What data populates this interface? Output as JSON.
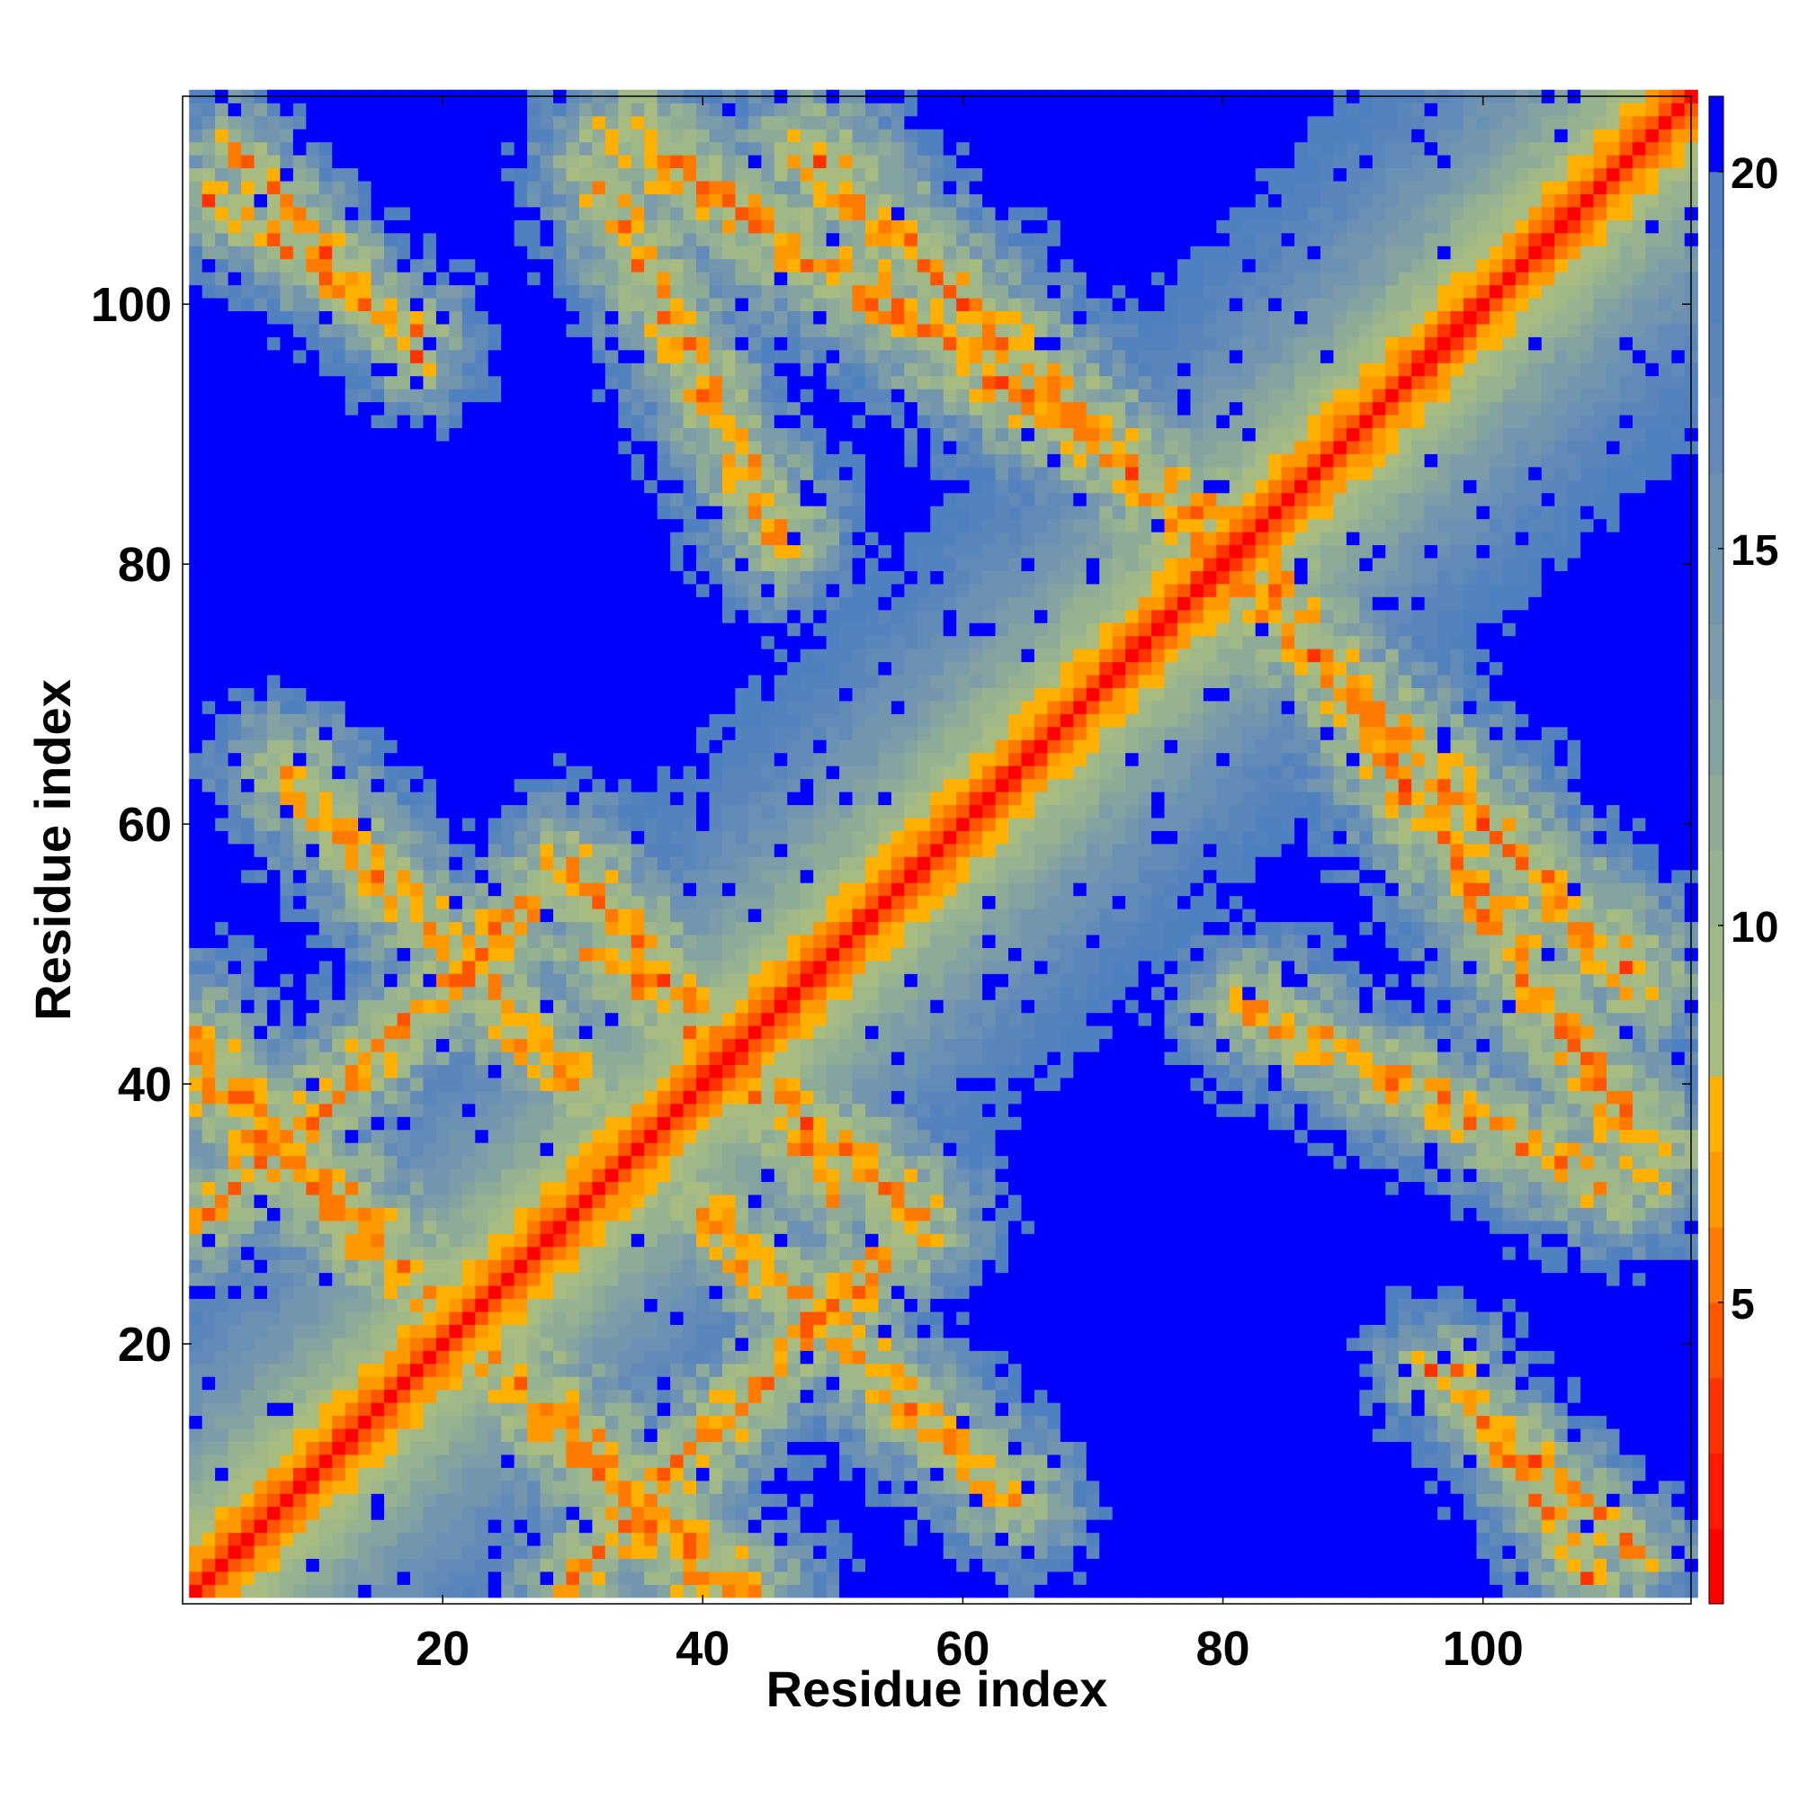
{
  "chart_data": {
    "type": "heatmap",
    "title": "",
    "xlabel": "Residue index",
    "ylabel": "Residue index",
    "n": 116,
    "x_range": [
      1,
      116
    ],
    "y_range": [
      1,
      116
    ],
    "xticks": [
      20,
      40,
      60,
      80,
      100
    ],
    "yticks": [
      20,
      40,
      60,
      80,
      100
    ],
    "colorbar": {
      "ticks": [
        5,
        10,
        15,
        20
      ],
      "range": [
        1,
        21
      ],
      "bands": [
        {
          "max": 2,
          "color": "#ff0000"
        },
        {
          "max": 3,
          "color": "#ff1a00"
        },
        {
          "max": 4,
          "color": "#ff3300"
        },
        {
          "max": 5,
          "color": "#ff5500"
        },
        {
          "max": 6,
          "color": "#ff7a00"
        },
        {
          "max": 7,
          "color": "#ff9900"
        },
        {
          "max": 8,
          "color": "#ffb000"
        },
        {
          "max": 9,
          "color": "#a8bb80"
        },
        {
          "max": 10,
          "color": "#a0b888"
        },
        {
          "max": 11,
          "color": "#97b290"
        },
        {
          "max": 12,
          "color": "#8eab98"
        },
        {
          "max": 13,
          "color": "#84a3a0"
        },
        {
          "max": 14,
          "color": "#7b9ca8"
        },
        {
          "max": 15,
          "color": "#7396ae"
        },
        {
          "max": 16,
          "color": "#6a90b4"
        },
        {
          "max": 17,
          "color": "#628ab8"
        },
        {
          "max": 18,
          "color": "#5a86bc"
        },
        {
          "max": 19,
          "color": "#5482be"
        },
        {
          "max": 20,
          "color": "#4f80c0"
        },
        {
          "max": 21,
          "color": "#0000ff"
        }
      ]
    },
    "contact_bands": [
      {
        "x_start": 1,
        "y_start": 41,
        "x_end": 43,
        "y_end": 1,
        "width": 7
      },
      {
        "x_start": 30,
        "y_start": 57,
        "x_end": 2,
        "y_end": 30,
        "width": 6
      },
      {
        "x_start": 30,
        "y_start": 57,
        "x_end": 50,
        "y_end": 32,
        "width": 6
      },
      {
        "x_start": 40,
        "y_start": 30,
        "x_end": 64,
        "y_end": 8,
        "width": 6
      },
      {
        "x_start": 34,
        "y_start": 113,
        "x_end": 80,
        "y_end": 83,
        "width": 7
      },
      {
        "x_start": 82,
        "y_start": 78,
        "x_end": 112,
        "y_end": 48,
        "width": 7
      },
      {
        "x_start": 82,
        "y_start": 46,
        "x_end": 110,
        "y_end": 32,
        "width": 6
      },
      {
        "x_start": 2,
        "y_start": 108,
        "x_end": 18,
        "y_end": 98,
        "width": 5
      },
      {
        "x_start": 96,
        "y_start": 18,
        "x_end": 112,
        "y_end": 4,
        "width": 5
      }
    ]
  }
}
